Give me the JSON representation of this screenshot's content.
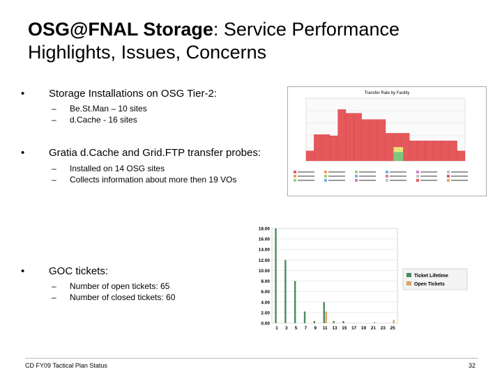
{
  "slide": {
    "title_bold": "OSG@FNAL Storage",
    "title_rest": ": Service Performance Highlights, Issues, Concerns",
    "footer_left": "CD FY09 Tactical Plan Status",
    "page_number": "32"
  },
  "bullets": [
    {
      "text": "Storage Installations on OSG Tier-2:",
      "subs": [
        "Be.St.Man – 10 sites",
        "d.Cache - 16 sites"
      ]
    },
    {
      "text": "Gratia d.Cache and Grid.FTP transfer probes:",
      "subs": [
        "Installed on 14 OSG sites",
        "Collects information about more then 19 VOs"
      ]
    },
    {
      "text": "GOC tickets:",
      "subs": [
        "Number of open tickets: 65",
        "Number of closed tickets: 60"
      ]
    }
  ],
  "colors": {
    "transfer_fill": "#e5585c",
    "transfer_light": "#f3b6b8",
    "lifetime": "#4a8a5c",
    "open": "#e0a060"
  },
  "chart_data": [
    {
      "type": "bar",
      "title": "Transfer Rate by Facility",
      "x": [
        1,
        2,
        3,
        4,
        5,
        6,
        7,
        8,
        9,
        10,
        11,
        12,
        13,
        14,
        15,
        16,
        17,
        18,
        19,
        20
      ],
      "values": [
        80,
        210,
        210,
        200,
        410,
        380,
        380,
        330,
        330,
        330,
        220,
        220,
        220,
        160,
        160,
        160,
        160,
        160,
        160,
        80
      ],
      "ylim": [
        0,
        500
      ],
      "grid": true,
      "legend": "bottom"
    },
    {
      "type": "bar",
      "categories": [
        "1",
        "3",
        "5",
        "7",
        "9",
        "11",
        "13",
        "15",
        "17",
        "19",
        "21",
        "23",
        "25"
      ],
      "series": [
        {
          "name": "Ticket Lifetime",
          "values": [
            18,
            12,
            8,
            2.2,
            0.4,
            4,
            0.4,
            0.4,
            0,
            0,
            0,
            0,
            0
          ]
        },
        {
          "name": "Open Tickets",
          "values": [
            0,
            0,
            0,
            0,
            0,
            2.2,
            0,
            0,
            0,
            0,
            0.2,
            0,
            0.6
          ]
        }
      ],
      "y_ticks": [
        "18.00",
        "16.00",
        "14.00",
        "12.00",
        "10.00",
        "8.00",
        "6.00",
        "4.00",
        "2.00",
        "0.00"
      ],
      "x_ticks": [
        "1",
        "3",
        "5",
        "7",
        "9",
        "11",
        "13",
        "15",
        "17",
        "19",
        "21",
        "23",
        "25"
      ],
      "ylim": [
        0,
        18
      ],
      "grid": true,
      "legend": "right"
    }
  ]
}
